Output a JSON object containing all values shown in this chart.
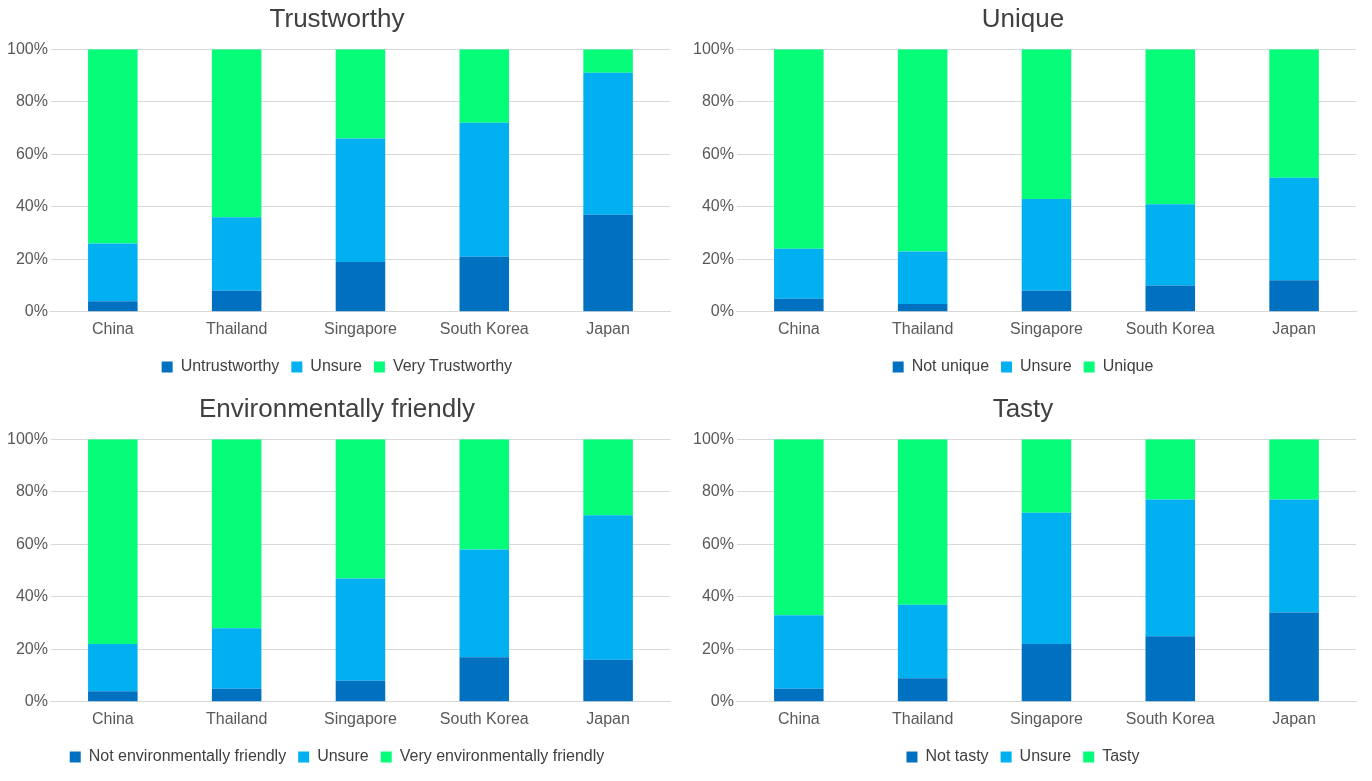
{
  "chart_data": [
    {
      "type": "bar",
      "title": "Trustworthy",
      "stacked": true,
      "categories": [
        "China",
        "Thailand",
        "Singapore",
        "South Korea",
        "Japan"
      ],
      "ylim": [
        0,
        100
      ],
      "yticks": [
        {
          "value": 0,
          "label": "0%"
        },
        {
          "value": 20,
          "label": "20%"
        },
        {
          "value": 40,
          "label": "40%"
        },
        {
          "value": 60,
          "label": "60%"
        },
        {
          "value": 80,
          "label": "80%"
        },
        {
          "value": 100,
          "label": "100%"
        }
      ],
      "grid": "y",
      "legend": "bottom",
      "series": [
        {
          "name": "Untrustworthy",
          "color": "#0070c0",
          "values": [
            4,
            8,
            19,
            21,
            37
          ]
        },
        {
          "name": "Unsure",
          "color": "#00b0f0",
          "values": [
            22,
            28,
            47,
            51,
            54
          ]
        },
        {
          "name": "Very Trustworthy",
          "color": "#05fd7a",
          "values": [
            74,
            64,
            34,
            28,
            9
          ]
        }
      ]
    },
    {
      "type": "bar",
      "title": "Unique",
      "stacked": true,
      "categories": [
        "China",
        "Thailand",
        "Singapore",
        "South Korea",
        "Japan"
      ],
      "ylim": [
        0,
        100
      ],
      "yticks": [
        {
          "value": 0,
          "label": "0%"
        },
        {
          "value": 20,
          "label": "20%"
        },
        {
          "value": 40,
          "label": "40%"
        },
        {
          "value": 60,
          "label": "60%"
        },
        {
          "value": 80,
          "label": "80%"
        },
        {
          "value": 100,
          "label": "100%"
        }
      ],
      "grid": "y",
      "legend": "bottom",
      "series": [
        {
          "name": "Not unique",
          "color": "#0070c0",
          "values": [
            5,
            3,
            8,
            10,
            12
          ]
        },
        {
          "name": "Unsure",
          "color": "#00b0f0",
          "values": [
            19,
            20,
            35,
            31,
            39
          ]
        },
        {
          "name": "Unique",
          "color": "#05fd7a",
          "values": [
            76,
            77,
            57,
            59,
            49
          ]
        }
      ]
    },
    {
      "type": "bar",
      "title": "Environmentally friendly",
      "stacked": true,
      "categories": [
        "China",
        "Thailand",
        "Singapore",
        "South Korea",
        "Japan"
      ],
      "ylim": [
        0,
        100
      ],
      "yticks": [
        {
          "value": 0,
          "label": "0%"
        },
        {
          "value": 20,
          "label": "20%"
        },
        {
          "value": 40,
          "label": "40%"
        },
        {
          "value": 60,
          "label": "60%"
        },
        {
          "value": 80,
          "label": "80%"
        },
        {
          "value": 100,
          "label": "100%"
        }
      ],
      "grid": "y",
      "legend": "bottom",
      "series": [
        {
          "name": "Not environmentally friendly",
          "color": "#0070c0",
          "values": [
            4,
            5,
            8,
            17,
            16
          ]
        },
        {
          "name": "Unsure",
          "color": "#00b0f0",
          "values": [
            18,
            23,
            39,
            41,
            55
          ]
        },
        {
          "name": "Very environmentally friendly",
          "color": "#05fd7a",
          "values": [
            78,
            72,
            53,
            42,
            29
          ]
        }
      ]
    },
    {
      "type": "bar",
      "title": "Tasty",
      "stacked": true,
      "categories": [
        "China",
        "Thailand",
        "Singapore",
        "South Korea",
        "Japan"
      ],
      "ylim": [
        0,
        100
      ],
      "yticks": [
        {
          "value": 0,
          "label": "0%"
        },
        {
          "value": 20,
          "label": "20%"
        },
        {
          "value": 40,
          "label": "40%"
        },
        {
          "value": 60,
          "label": "60%"
        },
        {
          "value": 80,
          "label": "80%"
        },
        {
          "value": 100,
          "label": "100%"
        }
      ],
      "grid": "y",
      "legend": "bottom",
      "series": [
        {
          "name": "Not tasty",
          "color": "#0070c0",
          "values": [
            5,
            9,
            22,
            25,
            34
          ]
        },
        {
          "name": "Unsure",
          "color": "#00b0f0",
          "values": [
            28,
            28,
            50,
            52,
            43
          ]
        },
        {
          "name": "Tasty",
          "color": "#05fd7a",
          "values": [
            67,
            63,
            28,
            23,
            23
          ]
        }
      ]
    }
  ]
}
